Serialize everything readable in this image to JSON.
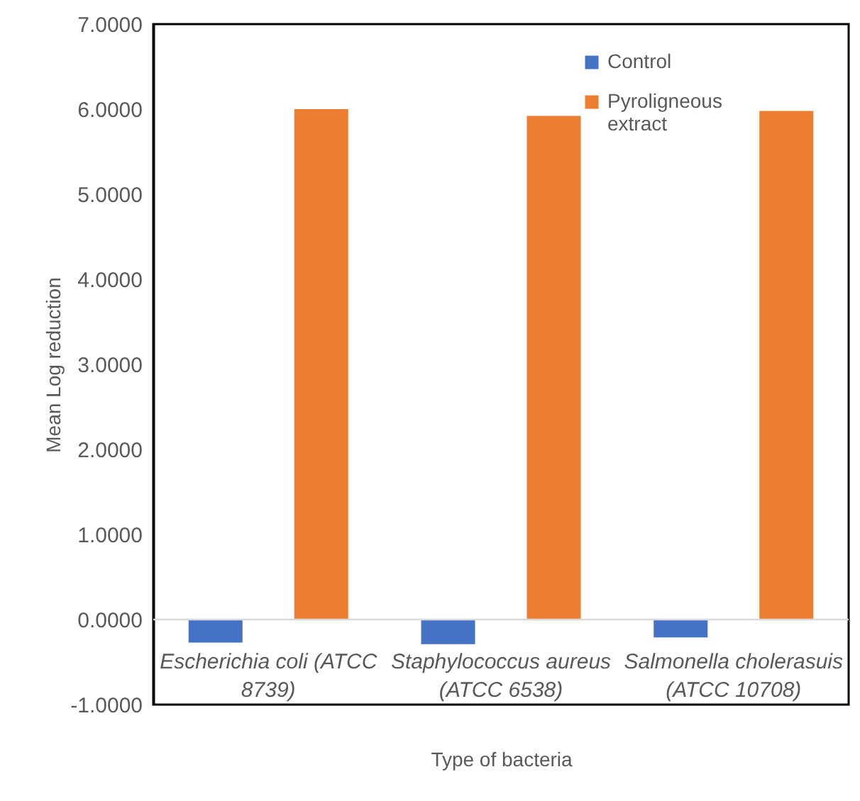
{
  "chart_data": {
    "type": "bar",
    "xlabel": "Type of bacteria",
    "ylabel": "Mean Log reduction",
    "categories": [
      "Escherichia coli (ATCC 8739)",
      "Staphylococcus aureus (ATCC 6538)",
      "Salmonella cholerasuis (ATCC 10708)"
    ],
    "series": [
      {
        "name": "Control",
        "color": "#4472c4",
        "values": [
          -0.27,
          -0.29,
          -0.21
        ]
      },
      {
        "name": "Pyroligneous extract",
        "color": "#ed7d31",
        "values": [
          6.0,
          5.92,
          5.98
        ]
      }
    ],
    "ylim": [
      -1,
      7
    ],
    "yticks": [
      {
        "value": -1,
        "label": "-1.0000"
      },
      {
        "value": 0,
        "label": "0.0000"
      },
      {
        "value": 1,
        "label": "1.0000"
      },
      {
        "value": 2,
        "label": "2.0000"
      },
      {
        "value": 3,
        "label": "3.0000"
      },
      {
        "value": 4,
        "label": "4.0000"
      },
      {
        "value": 5,
        "label": "5.0000"
      },
      {
        "value": 6,
        "label": "6.0000"
      },
      {
        "value": 7,
        "label": "7.0000"
      }
    ],
    "ref_lines": [
      {
        "axis": "y",
        "value": 0,
        "color": "#d9d9d9"
      }
    ],
    "grid": false,
    "legend": "top right"
  }
}
